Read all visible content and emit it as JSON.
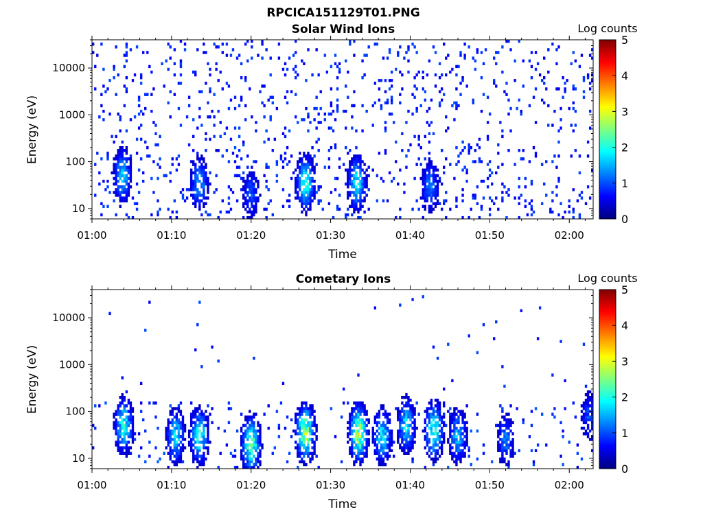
{
  "figure_title": "RPCICA151129T01.PNG",
  "colorbar_label": "Log counts",
  "colorbar_ticks": [
    "0",
    "1",
    "2",
    "3",
    "4",
    "5"
  ],
  "chart_data": [
    {
      "type": "heatmap",
      "title": "Solar Wind Ions",
      "xlabel": "Time",
      "ylabel": "Energy (eV)",
      "x_range": [
        "01:00",
        "02:03"
      ],
      "x_ticks": [
        "01:00",
        "01:10",
        "01:20",
        "01:30",
        "01:40",
        "01:50",
        "02:00"
      ],
      "y_scale": "log",
      "ylim": [
        6,
        40000
      ],
      "y_ticks": [
        "10",
        "100",
        "1000",
        "10000"
      ],
      "color_range": [
        0,
        5
      ],
      "colormap": "jet",
      "features": [
        {
          "time_min": 3.8,
          "energy_ev": 50,
          "log_counts": 1.6
        },
        {
          "time_min": 13.5,
          "energy_ev": 35,
          "log_counts": 1.4
        },
        {
          "time_min": 20.0,
          "energy_ev": 20,
          "log_counts": 1.0
        },
        {
          "time_min": 26.8,
          "energy_ev": 35,
          "log_counts": 2.0
        },
        {
          "time_min": 33.3,
          "energy_ev": 35,
          "log_counts": 1.8
        },
        {
          "time_min": 42.5,
          "energy_ev": 30,
          "log_counts": 1.2
        }
      ]
    },
    {
      "type": "heatmap",
      "title": "Cometary Ions",
      "xlabel": "Time",
      "ylabel": "Energy (eV)",
      "x_range": [
        "01:00",
        "02:03"
      ],
      "x_ticks": [
        "01:00",
        "01:10",
        "01:20",
        "01:30",
        "01:40",
        "01:50",
        "02:00"
      ],
      "y_scale": "log",
      "ylim": [
        6,
        40000
      ],
      "y_ticks": [
        "10",
        "100",
        "1000",
        "10000"
      ],
      "color_range": [
        0,
        5
      ],
      "colormap": "jet",
      "features": [
        {
          "time_min": 4.0,
          "energy_ev": 50,
          "log_counts": 2.0
        },
        {
          "time_min": 10.5,
          "energy_ev": 30,
          "log_counts": 1.8
        },
        {
          "time_min": 13.5,
          "energy_ev": 30,
          "log_counts": 2.0
        },
        {
          "time_min": 20.0,
          "energy_ev": 20,
          "log_counts": 2.4
        },
        {
          "time_min": 26.8,
          "energy_ev": 35,
          "log_counts": 2.8
        },
        {
          "time_min": 33.5,
          "energy_ev": 35,
          "log_counts": 2.8
        },
        {
          "time_min": 36.5,
          "energy_ev": 30,
          "log_counts": 1.8
        },
        {
          "time_min": 39.5,
          "energy_ev": 50,
          "log_counts": 1.8
        },
        {
          "time_min": 43.0,
          "energy_ev": 40,
          "log_counts": 2.2
        },
        {
          "time_min": 46.0,
          "energy_ev": 30,
          "log_counts": 1.6
        },
        {
          "time_min": 52.0,
          "energy_ev": 25,
          "log_counts": 1.2
        },
        {
          "time_min": 62.5,
          "energy_ev": 80,
          "log_counts": 1.0
        }
      ]
    }
  ]
}
